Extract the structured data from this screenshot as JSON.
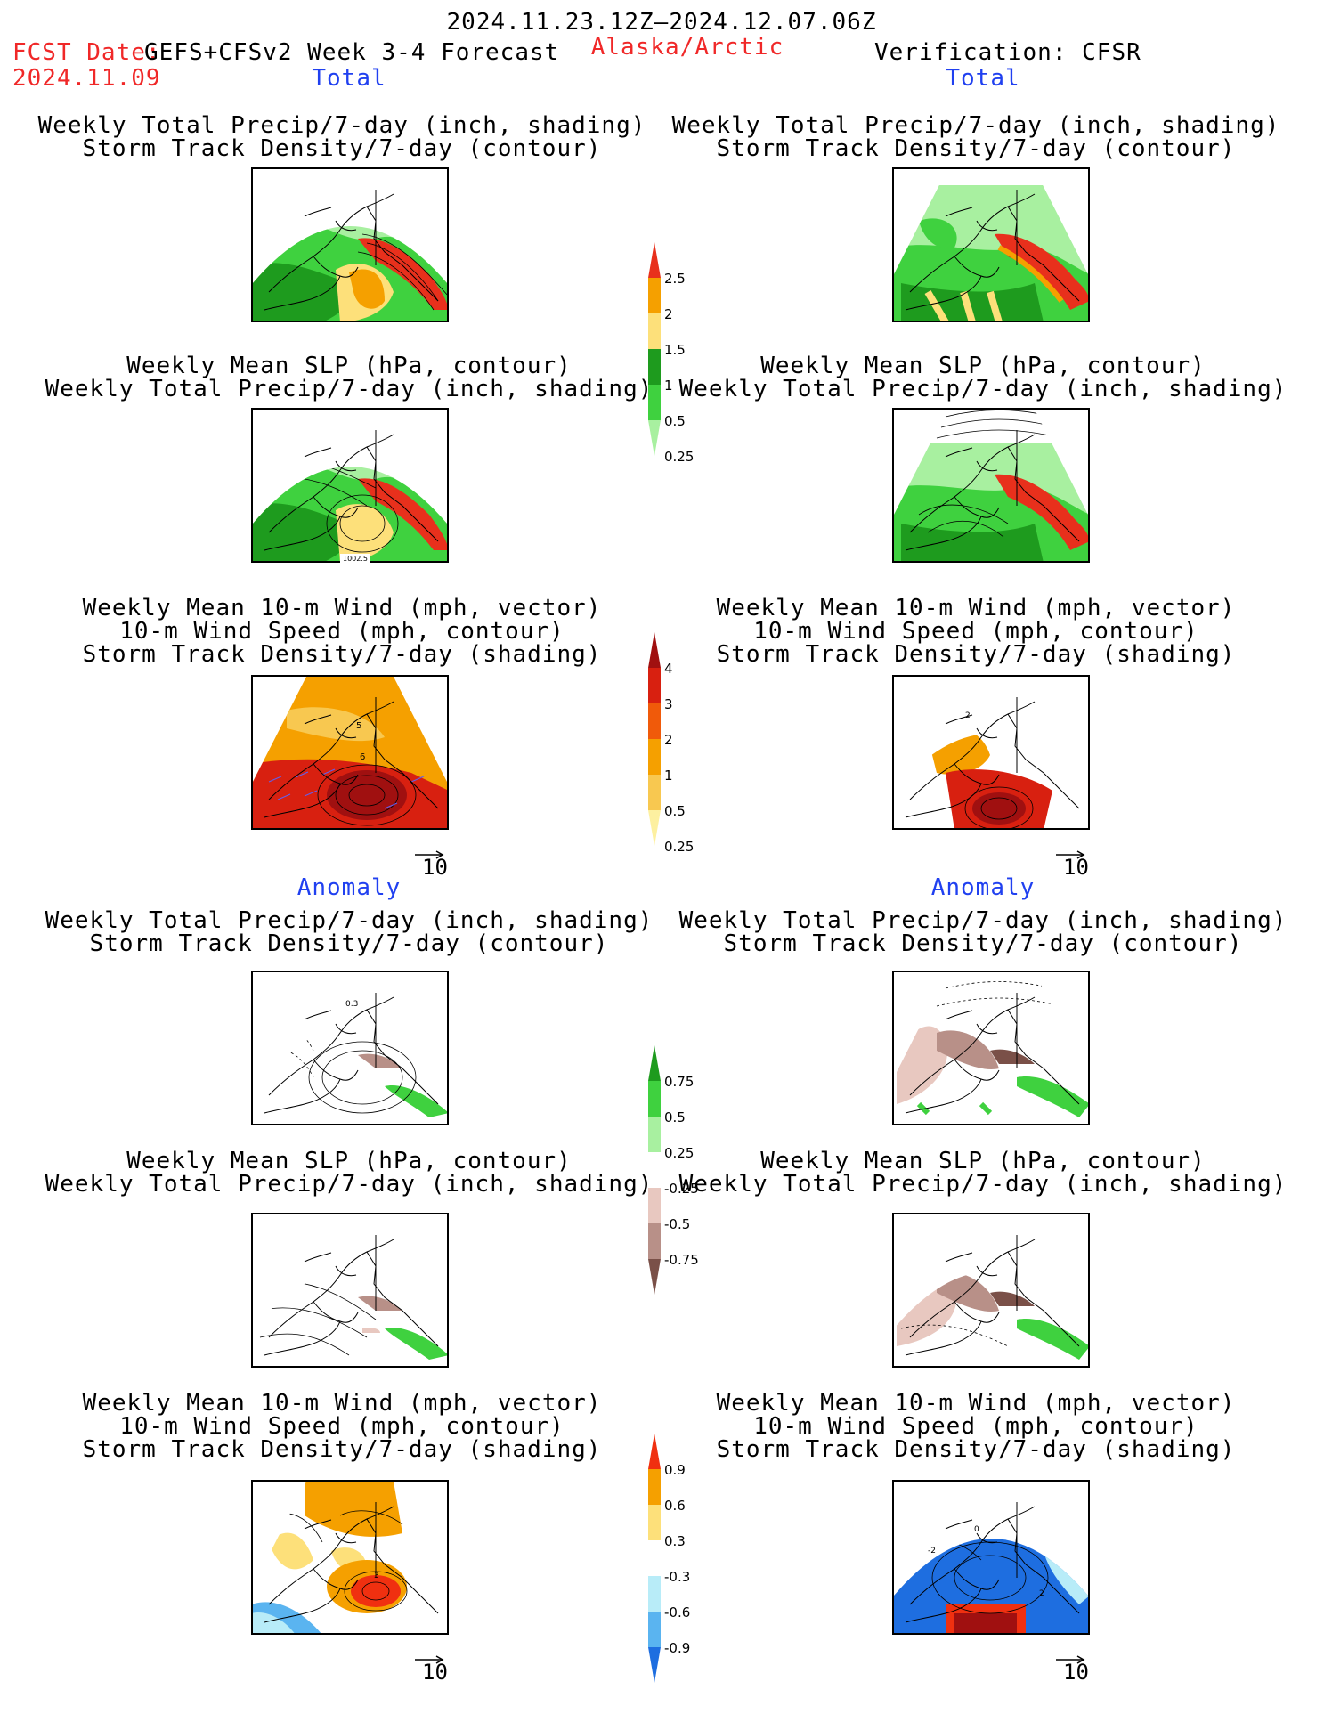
{
  "header": {
    "period": "2024.11.23.12Z–2024.12.07.06Z",
    "fcst_label": "FCST Date:",
    "model": "GEFS+CFSv2 Week 3-4 Forecast",
    "fcst_date": "2024.11.09",
    "region": "Alaska/Arctic",
    "verification": "Verification: CFSR"
  },
  "sections": {
    "total": "Total",
    "anomaly": "Anomaly"
  },
  "titles": {
    "precip_storm": [
      "Weekly Total Precip/7-day (inch, shading)",
      "Storm Track Density/7-day (contour)"
    ],
    "slp_precip": [
      "Weekly Mean SLP (hPa, contour)",
      "Weekly Total Precip/7-day (inch, shading)"
    ],
    "wind_storm": [
      "Weekly Mean 10-m Wind (mph, vector)",
      "10-m Wind Speed (mph, contour)",
      "Storm Track Density/7-day (shading)"
    ]
  },
  "vector_reference": "10",
  "contour_labels": {
    "slp_total_left": "1002.5",
    "wind_total_left_a": "5",
    "wind_total_left_b": "6",
    "wind_total_right": "2",
    "precip_anom_left": "0.3",
    "wind_anom_left": "3",
    "wind_anom_right_a": "0",
    "wind_anom_right_b": "-2",
    "wind_anom_right_c": "2"
  },
  "colorbars": {
    "precip_total": {
      "labels": [
        "2.5",
        "2",
        "1.5",
        "1",
        "0.5",
        "0.25"
      ],
      "colors": [
        "#e8301c",
        "#f5a000",
        "#fde07a",
        "#1e9b1e",
        "#3fd13f",
        "#a8f0a0"
      ]
    },
    "storm_total": {
      "labels": [
        "4",
        "3",
        "2",
        "1",
        "0.5",
        "0.25"
      ],
      "colors": [
        "#a01010",
        "#d82010",
        "#f05a0a",
        "#f5a000",
        "#f8c850",
        "#fdf0a0"
      ]
    },
    "precip_anom": {
      "labels": [
        "0.75",
        "0.5",
        "0.25",
        "-0.25",
        "-0.5",
        "-0.75"
      ],
      "colors": [
        "#1e9b1e",
        "#3fd13f",
        "#a8f0a0",
        "#ffffff",
        "#e8c8c0",
        "#b89088",
        "#7a5048"
      ]
    },
    "storm_anom": {
      "labels": [
        "0.9",
        "0.6",
        "0.3",
        "-0.3",
        "-0.6",
        "-0.9"
      ],
      "colors": [
        "#f03010",
        "#f5a000",
        "#fde07a",
        "#ffffff",
        "#b8ecf8",
        "#5ab4f0",
        "#1e6ee0"
      ]
    }
  }
}
